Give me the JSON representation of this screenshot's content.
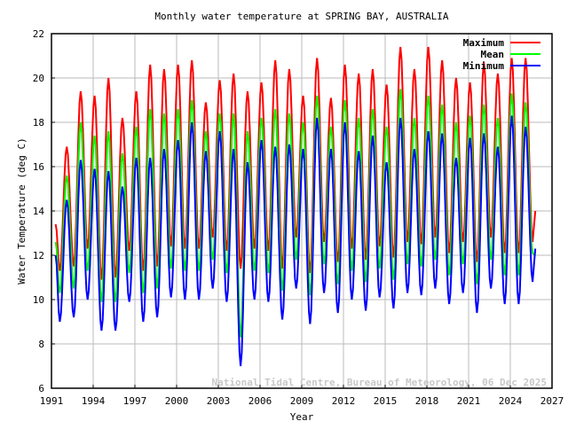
{
  "chart_data": {
    "type": "line",
    "title": "Monthly water temperature at SPRING BAY, AUSTRALIA",
    "xlabel": "Year",
    "ylabel": "Water Temperature (deg C)",
    "watermark": "National Tidal Centre, Bureau of Meteorology, 06 Dec 2025",
    "xlim": [
      1991,
      2027
    ],
    "ylim": [
      6,
      22
    ],
    "xticks": [
      1991,
      1994,
      1997,
      2000,
      2003,
      2006,
      2009,
      2012,
      2015,
      2018,
      2021,
      2024,
      2027
    ],
    "yticks": [
      6,
      8,
      10,
      12,
      14,
      16,
      18,
      20,
      22
    ],
    "grid": true,
    "legend_position": "top-right",
    "x": [
      1991.3,
      1991.6,
      1992.1,
      1992.6,
      1993.1,
      1993.6,
      1994.1,
      1994.6,
      1995.1,
      1995.6,
      1996.1,
      1996.6,
      1997.1,
      1997.6,
      1998.1,
      1998.6,
      1999.1,
      1999.6,
      2000.1,
      2000.6,
      2001.1,
      2001.6,
      2002.1,
      2002.6,
      2003.1,
      2003.6,
      2004.1,
      2004.6,
      2005.1,
      2005.6,
      2006.1,
      2006.6,
      2007.1,
      2007.6,
      2008.1,
      2008.6,
      2009.1,
      2009.6,
      2010.1,
      2010.6,
      2011.1,
      2011.6,
      2012.1,
      2012.6,
      2013.1,
      2013.6,
      2014.1,
      2014.6,
      2015.1,
      2015.6,
      2016.1,
      2016.6,
      2017.1,
      2017.6,
      2018.1,
      2018.6,
      2019.1,
      2019.6,
      2020.1,
      2020.6,
      2021.1,
      2021.6,
      2022.1,
      2022.6,
      2023.1,
      2023.6,
      2024.1,
      2024.6,
      2025.1,
      2025.6,
      2025.8
    ],
    "series": [
      {
        "name": "Maximum",
        "color": "#ff0000",
        "values": [
          13.4,
          11.3,
          16.9,
          11.5,
          19.4,
          12.3,
          19.2,
          10.9,
          20.0,
          11.0,
          18.2,
          12.2,
          19.4,
          11.3,
          20.6,
          11.5,
          20.4,
          12.4,
          20.6,
          12.3,
          20.8,
          12.3,
          18.9,
          12.8,
          19.9,
          12.2,
          20.2,
          11.4,
          19.4,
          12.3,
          19.8,
          12.2,
          20.8,
          11.4,
          20.4,
          12.8,
          19.2,
          11.2,
          20.9,
          12.6,
          19.1,
          11.7,
          20.6,
          12.3,
          20.2,
          11.8,
          20.4,
          12.4,
          19.7,
          11.9,
          21.4,
          12.6,
          20.4,
          12.5,
          21.4,
          12.8,
          20.8,
          12.1,
          20.0,
          12.6,
          19.8,
          11.7,
          20.7,
          12.8,
          20.2,
          12.1,
          20.9,
          12.1,
          20.9,
          12.6,
          14.0
        ]
      },
      {
        "name": "Mean",
        "color": "#00ff00",
        "values": [
          12.6,
          10.3,
          15.6,
          10.5,
          18.0,
          11.3,
          17.4,
          9.9,
          17.6,
          9.9,
          16.6,
          11.2,
          17.8,
          10.3,
          18.6,
          10.5,
          18.4,
          11.4,
          18.6,
          11.3,
          19.0,
          11.3,
          17.6,
          11.8,
          18.4,
          11.2,
          18.4,
          8.3,
          17.6,
          11.3,
          18.2,
          11.2,
          18.6,
          10.4,
          18.4,
          11.8,
          18.0,
          10.2,
          19.2,
          11.6,
          17.8,
          10.7,
          19.0,
          11.3,
          18.2,
          10.8,
          18.6,
          11.4,
          17.8,
          10.9,
          19.5,
          11.6,
          18.2,
          11.5,
          19.2,
          11.8,
          18.8,
          11.1,
          18.0,
          11.6,
          18.3,
          10.7,
          18.8,
          11.8,
          18.2,
          11.1,
          19.3,
          11.1,
          18.9,
          12.1,
          12.0
        ]
      },
      {
        "name": "Minimum",
        "color": "#0000ff",
        "values": [
          12.0,
          9.0,
          14.5,
          9.2,
          16.3,
          10.0,
          15.9,
          8.6,
          15.8,
          8.6,
          15.1,
          9.9,
          16.4,
          9.0,
          16.4,
          9.2,
          16.8,
          10.1,
          17.2,
          10.0,
          18.0,
          10.0,
          16.7,
          10.5,
          17.6,
          9.9,
          16.8,
          7.0,
          16.2,
          10.0,
          17.2,
          9.9,
          16.9,
          9.1,
          17.0,
          10.5,
          16.8,
          8.9,
          18.2,
          10.3,
          16.8,
          9.4,
          18.0,
          10.0,
          16.7,
          9.5,
          17.4,
          10.1,
          16.2,
          9.6,
          18.2,
          10.3,
          16.8,
          10.2,
          17.6,
          10.5,
          17.5,
          9.8,
          16.4,
          10.3,
          17.3,
          9.4,
          17.5,
          10.5,
          16.9,
          9.8,
          18.3,
          9.8,
          17.8,
          10.8,
          12.3
        ]
      }
    ]
  }
}
